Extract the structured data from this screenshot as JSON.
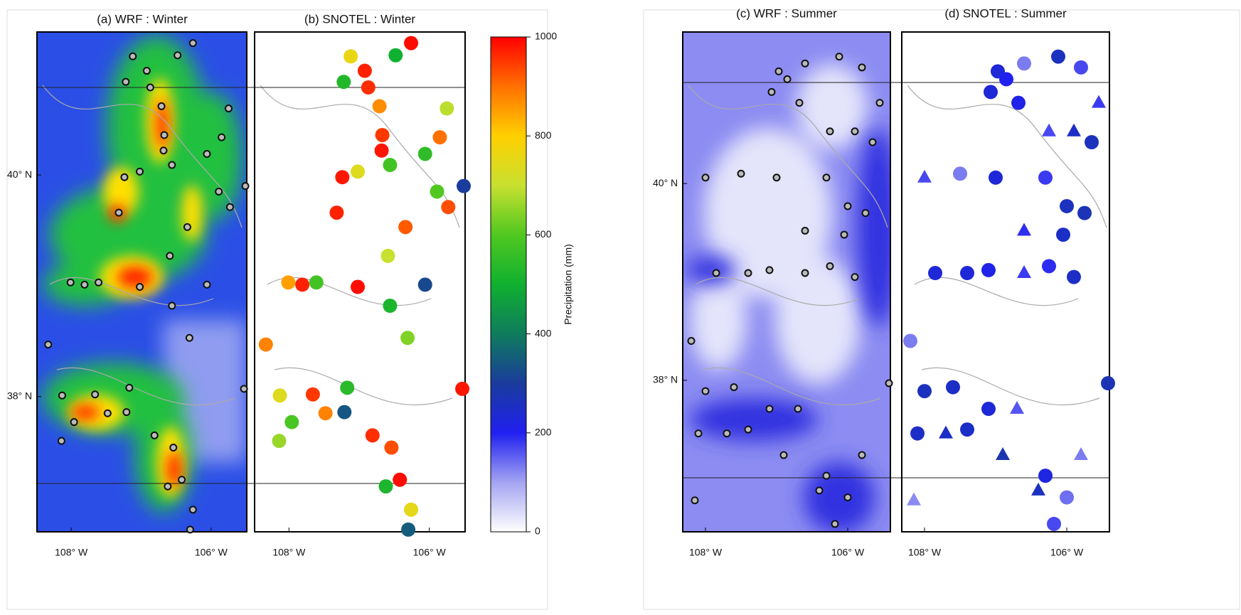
{
  "panels": [
    {
      "title": "(a) WRF : Winter"
    },
    {
      "title": "(b) SNOTEL : Winter"
    },
    {
      "title": "(c) WRF : Summer"
    },
    {
      "title": "(d) SNOTEL : Summer"
    }
  ],
  "maps": {
    "winter": {
      "lonlim": [
        -108.49,
        -105.49
      ],
      "latlim": [
        36.78,
        41.29
      ]
    },
    "summer": {
      "lonlim": [
        -108.32,
        -105.4
      ],
      "latlim": [
        36.46,
        41.54
      ]
    }
  },
  "lon_ticks": [
    {
      "value": -108,
      "label": "108° W"
    },
    {
      "value": -106,
      "label": "106° W"
    }
  ],
  "lat_ticks": [
    {
      "value": 38,
      "label": "38° N"
    },
    {
      "value": 40,
      "label": "40° N"
    }
  ],
  "colorbar": {
    "label": "Precipitation (mm)",
    "lim": [
      0,
      1000
    ],
    "ticks": [
      0,
      200,
      400,
      600,
      800,
      1000
    ]
  },
  "winter_stations": {
    "lon": [
      -106.26,
      -107.12,
      -106.92,
      -106.87,
      -107.22,
      -106.71,
      -105.75,
      -106.48,
      -106.67,
      -106.68,
      -105.85,
      -106.06,
      -106.56,
      -107.02,
      -107.24,
      -105.51,
      -105.73,
      -107.32,
      -105.89,
      -106.34,
      -106.59,
      -106.06,
      -107.02,
      -107.81,
      -108.01,
      -107.61,
      -106.56,
      -106.31,
      -108.33,
      -107.17,
      -108.13,
      -107.66,
      -107.21,
      -107.48,
      -107.96,
      -106.81,
      -106.54,
      -108.14,
      -106.42,
      -106.62,
      -106.26,
      -106.3,
      -105.53
    ],
    "lat": [
      41.19,
      41.07,
      40.94,
      40.79,
      40.84,
      40.62,
      40.6,
      41.08,
      40.36,
      40.22,
      40.34,
      40.19,
      40.09,
      40.03,
      39.98,
      39.9,
      39.71,
      39.66,
      39.85,
      39.53,
      39.27,
      39.01,
      38.99,
      39.01,
      39.03,
      39.03,
      38.82,
      38.53,
      38.47,
      38.08,
      38.01,
      38.02,
      37.86,
      37.85,
      37.77,
      37.65,
      37.54,
      37.6,
      37.25,
      37.19,
      36.98,
      36.8,
      38.07
    ],
    "values": [
      990,
      760,
      970,
      960,
      530,
      870,
      690,
      500,
      950,
      980,
      900,
      550,
      580,
      740,
      980,
      300,
      930,
      970,
      600,
      920,
      700,
      320,
      990,
      970,
      850,
      580,
      520,
      640,
      880,
      540,
      740,
      950,
      340,
      880,
      590,
      960,
      930,
      660,
      990,
      520,
      750,
      350,
      980
    ]
  },
  "summer_stations": {
    "lon": [
      -106.97,
      -106.6,
      -106.12,
      -105.8,
      -107.07,
      -106.85,
      -106.68,
      -105.55,
      -106.25,
      -105.9,
      -105.65,
      -108.0,
      -107.5,
      -107.0,
      -106.3,
      -106.0,
      -105.75,
      -106.05,
      -106.6,
      -107.85,
      -107.4,
      -107.1,
      -106.6,
      -106.25,
      -105.9,
      -108.2,
      -108.0,
      -107.6,
      -107.1,
      -106.7,
      -108.1,
      -107.7,
      -107.4,
      -106.9,
      -106.3,
      -106.4,
      -106.0,
      -105.8,
      -108.15,
      -106.18,
      -105.42
    ],
    "lat": [
      41.14,
      41.22,
      41.29,
      41.18,
      40.93,
      41.06,
      40.82,
      40.82,
      40.53,
      40.53,
      40.42,
      40.06,
      40.1,
      40.06,
      40.06,
      39.77,
      39.7,
      39.48,
      39.52,
      39.09,
      39.09,
      39.12,
      39.09,
      39.16,
      39.05,
      38.4,
      37.89,
      37.93,
      37.71,
      37.71,
      37.46,
      37.46,
      37.5,
      37.24,
      37.03,
      36.88,
      36.81,
      37.24,
      36.78,
      36.54,
      37.97
    ],
    "values": [
      230,
      130,
      260,
      170,
      230,
      200,
      210,
      180,
      170,
      250,
      260,
      170,
      130,
      230,
      180,
      260,
      270,
      250,
      190,
      230,
      230,
      210,
      180,
      190,
      250,
      130,
      260,
      250,
      230,
      160,
      250,
      250,
      250,
      280,
      220,
      260,
      140,
      130,
      120,
      170,
      270
    ],
    "markers": [
      "circle",
      "circle",
      "circle",
      "circle",
      "circle",
      "circle",
      "circle",
      "triangle",
      "triangle",
      "triangle",
      "circle",
      "triangle",
      "circle",
      "circle",
      "circle",
      "circle",
      "circle",
      "circle",
      "triangle",
      "circle",
      "circle",
      "circle",
      "triangle",
      "circle",
      "circle",
      "circle",
      "circle",
      "circle",
      "circle",
      "triangle",
      "circle",
      "triangle",
      "circle",
      "triangle",
      "circle",
      "triangle",
      "circle",
      "triangle",
      "triangle",
      "circle",
      "circle"
    ]
  }
}
